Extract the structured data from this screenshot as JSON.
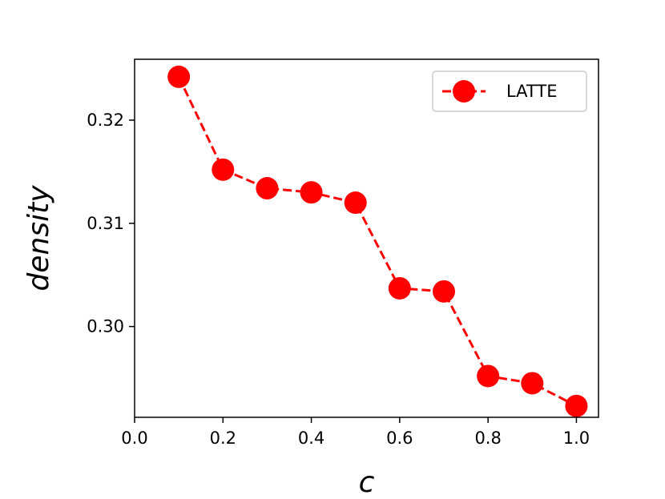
{
  "chart_data": {
    "type": "line",
    "title": "",
    "xlabel": "c",
    "ylabel": "density",
    "xlim": [
      0.0,
      1.05
    ],
    "ylim": [
      0.2912,
      0.3259
    ],
    "x_ticks": [
      "0.0",
      "0.2",
      "0.4",
      "0.6",
      "0.8",
      "1.0"
    ],
    "y_ticks": [
      "0.30",
      "0.31",
      "0.32"
    ],
    "grid": false,
    "legend_position": "top-right",
    "series": [
      {
        "name": "LATTE",
        "color": "#ff0000",
        "line_style": "dashed",
        "marker": "circle",
        "x": [
          0.1,
          0.2,
          0.3,
          0.4,
          0.5,
          0.6,
          0.7,
          0.8,
          0.9,
          1.0
        ],
        "y": [
          0.3242,
          0.3152,
          0.3134,
          0.313,
          0.312,
          0.3037,
          0.3034,
          0.2952,
          0.2945,
          0.2923
        ]
      }
    ]
  }
}
